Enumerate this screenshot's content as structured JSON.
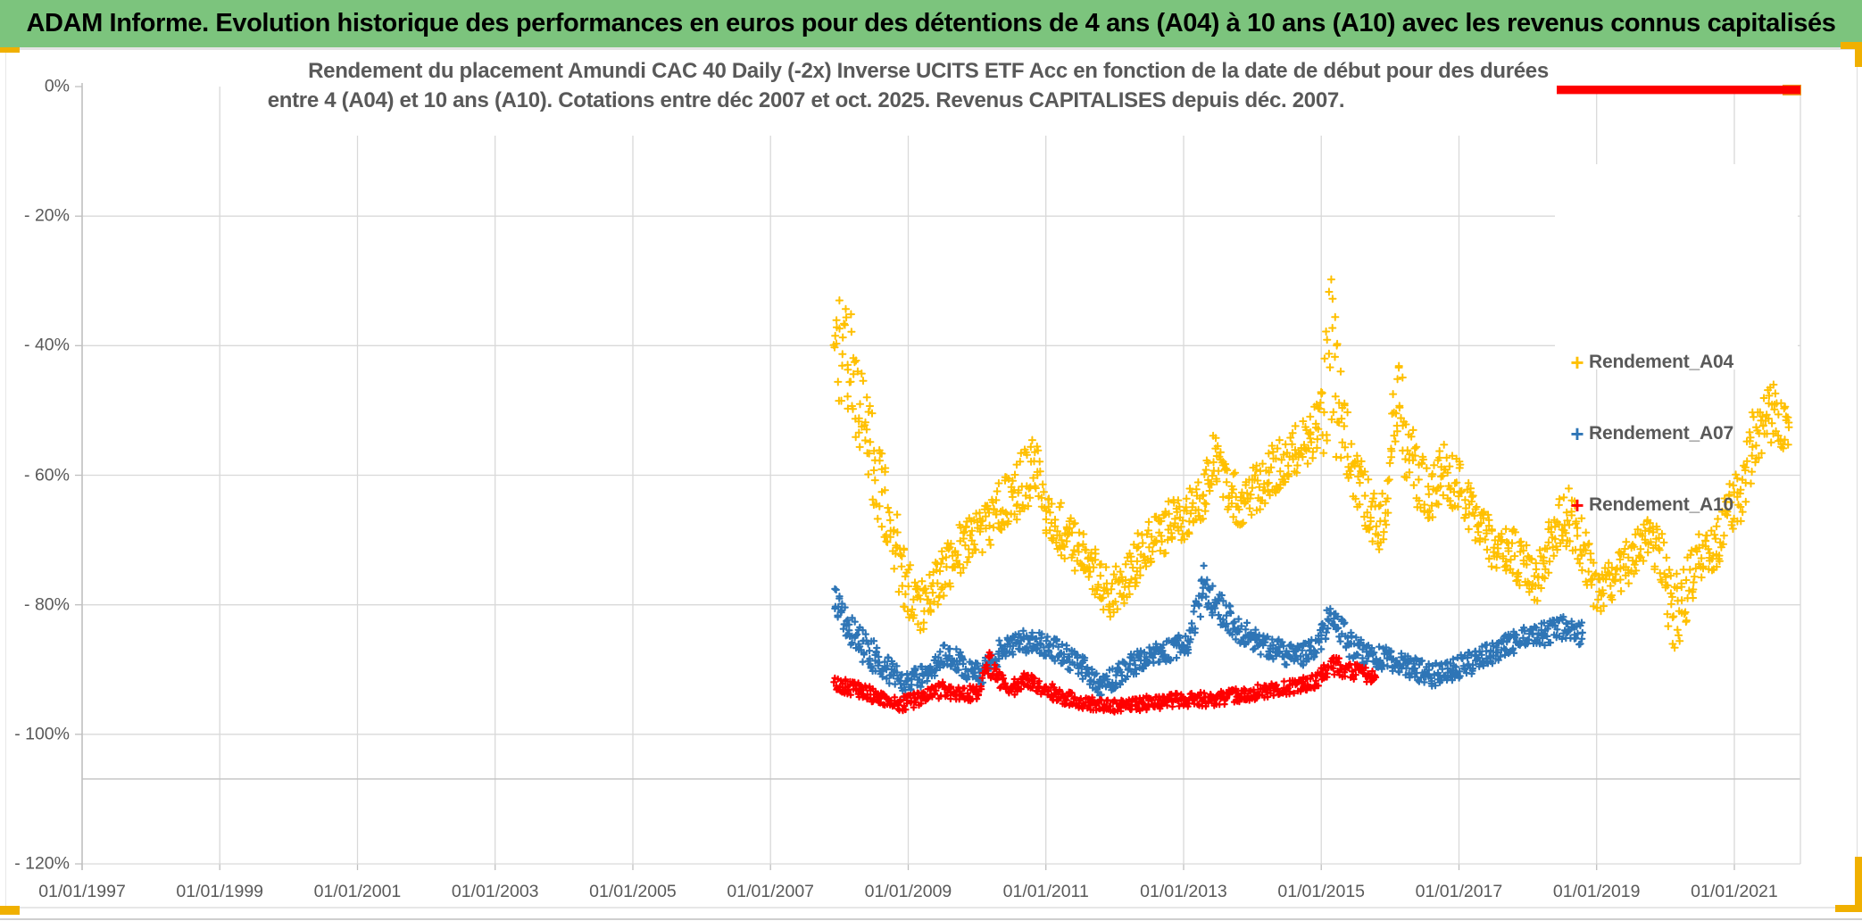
{
  "page": {
    "header": {
      "title": "ADAM Informe. Evolution historique des performances en euros pour des détentions de 4 ans (A04) à 10 ans (A10) avec les revenus connus capitalisés"
    }
  },
  "colors": {
    "header_bg": "#7cc47d",
    "accent_gold": "#f0b000",
    "grid": "#d9d9d9",
    "axis": "#bfbfbf",
    "labels": "#595959",
    "series_a04": "#FFC000",
    "series_a07": "#2E75B6",
    "series_a10": "#FF0000",
    "annotation_red": "#FE0000",
    "annotation_orange": "#ED9F24"
  },
  "chart_data": {
    "type": "scatter",
    "title_line1": "Rendement du placement Amundi CAC 40 Daily (-2x) Inverse UCITS ETF Acc en fonction de la date de début pour des durées",
    "title_line2": "entre 4 (A04) et 10 ans (A10). Cotations entre déc 2007 et oct. 2025. Revenus CAPITALISES depuis déc. 2007.",
    "grid": true,
    "legend_position": "right-top",
    "x_domain": [
      1997.0,
      2021.96
    ],
    "y_domain": [
      0,
      -120
    ],
    "y_floor_line_value": -106.9,
    "x_ticks": [
      {
        "label": "01/01/1997",
        "year": 1997
      },
      {
        "label": "01/01/1999",
        "year": 1999
      },
      {
        "label": "01/01/2001",
        "year": 2001
      },
      {
        "label": "01/01/2003",
        "year": 2003
      },
      {
        "label": "01/01/2005",
        "year": 2005
      },
      {
        "label": "01/01/2007",
        "year": 2007
      },
      {
        "label": "01/01/2009",
        "year": 2009
      },
      {
        "label": "01/01/2011",
        "year": 2011
      },
      {
        "label": "01/01/2013",
        "year": 2013
      },
      {
        "label": "01/01/2015",
        "year": 2015
      },
      {
        "label": "01/01/2017",
        "year": 2017
      },
      {
        "label": "01/01/2019",
        "year": 2019
      },
      {
        "label": "01/01/2021",
        "year": 2021
      }
    ],
    "y_ticks": [
      {
        "label": "0%",
        "value": 0
      },
      {
        "label": "- 20%",
        "value": -20
      },
      {
        "label": "- 40%",
        "value": -40
      },
      {
        "label": "- 60%",
        "value": -60
      },
      {
        "label": "- 80%",
        "value": -80
      },
      {
        "label": "- 100%",
        "value": -100
      },
      {
        "label": "- 120%",
        "value": -120
      }
    ],
    "legend": [
      {
        "label": "Rendement_A04",
        "color": "#FFC000"
      },
      {
        "label": "Rendement_A07",
        "color": "#2E75B6"
      },
      {
        "label": "Rendement_A10",
        "color": "#FF0000"
      }
    ],
    "annotation_line": {
      "y_value": -0.4,
      "x_from": 2018.38,
      "x_to": 2021.96,
      "color": "#FE0000",
      "tip_color": "#ED9F24"
    },
    "series": [
      {
        "name": "Rendement_A04",
        "color": "#FFC000",
        "marker_half_px": 3.6,
        "stroke_px": 2.0,
        "step_years": 0.02,
        "points_per_step": 2,
        "envelope_format": "[start_date_decimal_year, mid_return_pct, half_range_pct]",
        "envelope": [
          [
            2007.93,
            -41,
            8
          ],
          [
            2008.08,
            -38,
            11
          ],
          [
            2008.2,
            -44,
            9
          ],
          [
            2008.35,
            -52,
            7
          ],
          [
            2008.55,
            -60,
            7
          ],
          [
            2008.75,
            -68,
            6
          ],
          [
            2008.95,
            -76,
            5
          ],
          [
            2009.1,
            -80,
            4
          ],
          [
            2009.25,
            -80.5,
            4
          ],
          [
            2009.45,
            -76,
            4
          ],
          [
            2009.7,
            -72,
            4
          ],
          [
            2009.95,
            -70,
            4
          ],
          [
            2010.2,
            -67,
            4
          ],
          [
            2010.45,
            -64,
            4.5
          ],
          [
            2010.7,
            -60.5,
            5
          ],
          [
            2010.85,
            -59,
            5.5
          ],
          [
            2011.0,
            -65,
            4
          ],
          [
            2011.3,
            -69.5,
            4
          ],
          [
            2011.6,
            -73.5,
            4
          ],
          [
            2011.9,
            -78.5,
            4
          ],
          [
            2012.05,
            -77.5,
            4
          ],
          [
            2012.3,
            -73.5,
            4
          ],
          [
            2012.6,
            -69.5,
            4
          ],
          [
            2012.9,
            -67,
            4
          ],
          [
            2013.1,
            -65,
            4
          ],
          [
            2013.3,
            -62,
            4.5
          ],
          [
            2013.42,
            -57.5,
            5
          ],
          [
            2013.6,
            -61.5,
            4
          ],
          [
            2013.8,
            -64,
            4
          ],
          [
            2014.05,
            -62,
            4
          ],
          [
            2014.3,
            -59,
            4
          ],
          [
            2014.55,
            -57,
            4
          ],
          [
            2014.8,
            -54.5,
            4
          ],
          [
            2015.0,
            -52,
            5
          ],
          [
            2015.14,
            -42,
            15
          ],
          [
            2015.25,
            -50,
            9
          ],
          [
            2015.4,
            -57,
            5
          ],
          [
            2015.6,
            -63,
            5
          ],
          [
            2015.8,
            -68,
            5
          ],
          [
            2015.95,
            -64,
            5.5
          ],
          [
            2016.1,
            -50,
            10
          ],
          [
            2016.25,
            -55,
            6
          ],
          [
            2016.45,
            -62,
            5
          ],
          [
            2016.65,
            -63,
            5
          ],
          [
            2016.8,
            -59.5,
            5
          ],
          [
            2017.0,
            -62,
            4.5
          ],
          [
            2017.25,
            -66.5,
            4
          ],
          [
            2017.5,
            -71,
            4
          ],
          [
            2017.75,
            -72,
            4
          ],
          [
            2018.0,
            -74.5,
            4
          ],
          [
            2018.15,
            -76,
            4
          ],
          [
            2018.35,
            -69,
            4
          ],
          [
            2018.6,
            -66,
            4.5
          ],
          [
            2018.85,
            -72.5,
            4
          ],
          [
            2019.0,
            -79,
            3.5
          ],
          [
            2019.2,
            -76.5,
            3.5
          ],
          [
            2019.45,
            -73.5,
            3.5
          ],
          [
            2019.75,
            -70,
            3.5
          ],
          [
            2019.95,
            -72.5,
            4
          ],
          [
            2020.1,
            -81.5,
            6.5
          ],
          [
            2020.25,
            -80,
            5
          ],
          [
            2020.45,
            -73,
            4
          ],
          [
            2020.65,
            -71.5,
            3.5
          ],
          [
            2020.8,
            -70,
            4.5
          ],
          [
            2020.95,
            -64,
            4.5
          ],
          [
            2021.1,
            -64.5,
            4
          ],
          [
            2021.25,
            -55.5,
            5
          ],
          [
            2021.4,
            -51.5,
            5
          ],
          [
            2021.55,
            -50,
            5
          ],
          [
            2021.7,
            -52,
            4
          ],
          [
            2021.79,
            -54,
            3
          ]
        ]
      },
      {
        "name": "Rendement_A07",
        "color": "#2E75B6",
        "marker_half_px": 3.1,
        "stroke_px": 2.2,
        "step_years": 0.02,
        "points_per_step": 2,
        "envelope_format": "[start_date_decimal_year, mid_return_pct, half_range_pct]",
        "envelope": [
          [
            2007.93,
            -79,
            2
          ],
          [
            2008.15,
            -84,
            2.5
          ],
          [
            2008.4,
            -87,
            2.5
          ],
          [
            2008.7,
            -90,
            2
          ],
          [
            2008.95,
            -92.5,
            1.8
          ],
          [
            2009.2,
            -91,
            1.8
          ],
          [
            2009.55,
            -87.5,
            1.8
          ],
          [
            2009.8,
            -89.5,
            1.8
          ],
          [
            2010.05,
            -91,
            1.8
          ],
          [
            2010.35,
            -87,
            1.8
          ],
          [
            2010.65,
            -85.5,
            1.8
          ],
          [
            2010.95,
            -86,
            1.8
          ],
          [
            2011.25,
            -87.5,
            1.8
          ],
          [
            2011.55,
            -90,
            1.8
          ],
          [
            2011.8,
            -92.5,
            1.8
          ],
          [
            2012.1,
            -90.5,
            1.8
          ],
          [
            2012.45,
            -88,
            1.8
          ],
          [
            2012.8,
            -87,
            1.8
          ],
          [
            2013.1,
            -85.5,
            1.8
          ],
          [
            2013.3,
            -76.5,
            3.5
          ],
          [
            2013.5,
            -80,
            2.5
          ],
          [
            2013.75,
            -83.5,
            2
          ],
          [
            2014.05,
            -85.5,
            1.8
          ],
          [
            2014.35,
            -87,
            1.8
          ],
          [
            2014.65,
            -88,
            1.8
          ],
          [
            2014.95,
            -86.5,
            1.8
          ],
          [
            2015.15,
            -81.5,
            2.5
          ],
          [
            2015.4,
            -86,
            2
          ],
          [
            2015.7,
            -88,
            1.8
          ],
          [
            2016.0,
            -88.5,
            1.8
          ],
          [
            2016.3,
            -89.5,
            1.8
          ],
          [
            2016.6,
            -91,
            1.8
          ],
          [
            2016.9,
            -90,
            1.8
          ],
          [
            2017.15,
            -89,
            1.8
          ],
          [
            2017.45,
            -87.5,
            1.8
          ],
          [
            2017.75,
            -86,
            1.8
          ],
          [
            2018.0,
            -85,
            1.8
          ],
          [
            2018.25,
            -84.5,
            1.8
          ],
          [
            2018.5,
            -83.5,
            1.8
          ],
          [
            2018.8,
            -84.5,
            1.8
          ]
        ]
      },
      {
        "name": "Rendement_A10",
        "color": "#FF0000",
        "marker_half_px": 2.9,
        "stroke_px": 2.2,
        "step_years": 0.02,
        "points_per_step": 2,
        "envelope_format": "[start_date_decimal_year, mid_return_pct, half_range_pct]",
        "envelope": [
          [
            2007.93,
            -92,
            1.2
          ],
          [
            2008.2,
            -93,
            1.2
          ],
          [
            2008.5,
            -94,
            1.2
          ],
          [
            2008.9,
            -95.3,
            1.1
          ],
          [
            2009.2,
            -94.3,
            1.2
          ],
          [
            2009.5,
            -93,
            1.2
          ],
          [
            2009.8,
            -94,
            1.2
          ],
          [
            2010.05,
            -93.3,
            1.2
          ],
          [
            2010.17,
            -88.8,
            2.2
          ],
          [
            2010.3,
            -91.5,
            1.4
          ],
          [
            2010.5,
            -93,
            1.2
          ],
          [
            2010.7,
            -91.3,
            1.3
          ],
          [
            2010.9,
            -92.5,
            1.2
          ],
          [
            2011.2,
            -94,
            1.2
          ],
          [
            2011.5,
            -95,
            1.1
          ],
          [
            2011.8,
            -95.6,
            1
          ],
          [
            2012.2,
            -95.5,
            1
          ],
          [
            2012.6,
            -95,
            1.1
          ],
          [
            2013.0,
            -94.6,
            1.1
          ],
          [
            2013.4,
            -94.6,
            1.1
          ],
          [
            2013.8,
            -94,
            1.1
          ],
          [
            2014.2,
            -93.2,
            1.1
          ],
          [
            2014.6,
            -92.6,
            1.1
          ],
          [
            2014.9,
            -92,
            1.2
          ],
          [
            2015.15,
            -89.3,
            1.6
          ],
          [
            2015.4,
            -90.2,
            1.4
          ],
          [
            2015.6,
            -90.6,
            1.2
          ],
          [
            2015.8,
            -91,
            1.2
          ]
        ]
      }
    ]
  }
}
